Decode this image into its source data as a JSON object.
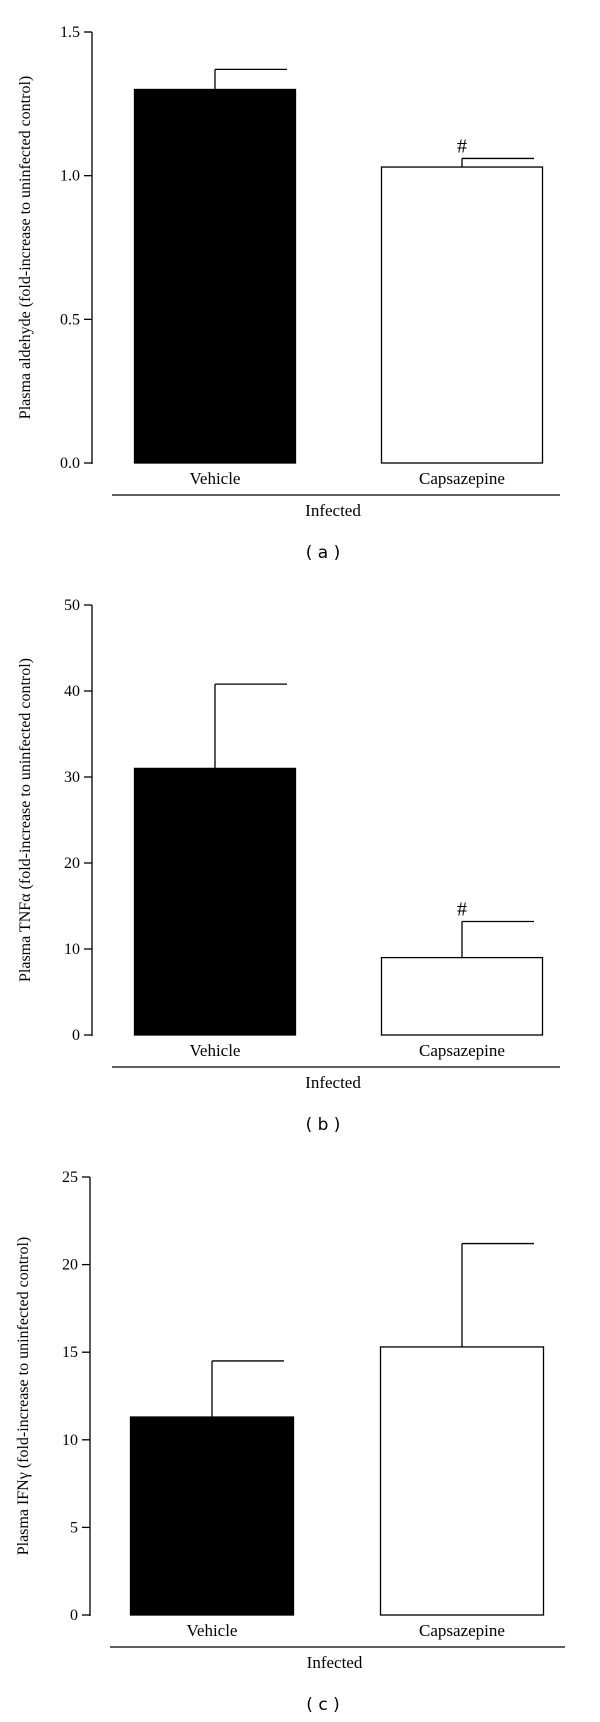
{
  "chart_data": [
    {
      "type": "bar",
      "panel": "( a )",
      "ylabel": "Plasma aldehyde (fold-increase to uninfected control)",
      "categories": [
        "Vehicle",
        "Capsazepine"
      ],
      "group_label": "Infected",
      "values": [
        1.3,
        1.03
      ],
      "errors": [
        0.07,
        0.03
      ],
      "significance": [
        "",
        "#"
      ],
      "bar_colors": [
        "#000000",
        "#ffffff"
      ],
      "ylim": [
        0,
        1.5
      ],
      "yticks": [
        0.0,
        0.5,
        1.0,
        1.5
      ],
      "ytick_labels": [
        "0.0",
        "0.5",
        "1.0",
        "1.5"
      ]
    },
    {
      "type": "bar",
      "panel": "( b )",
      "ylabel": "Plasma TNFα (fold-increase to uninfected control)",
      "categories": [
        "Vehicle",
        "Capsazepine"
      ],
      "group_label": "Infected",
      "values": [
        31,
        9
      ],
      "errors": [
        9.8,
        4.2
      ],
      "significance": [
        "",
        "#"
      ],
      "bar_colors": [
        "#000000",
        "#ffffff"
      ],
      "ylim": [
        0,
        50
      ],
      "yticks": [
        0,
        10,
        20,
        30,
        40,
        50
      ],
      "ytick_labels": [
        "0",
        "10",
        "20",
        "30",
        "40",
        "50"
      ]
    },
    {
      "type": "bar",
      "panel": "( c )",
      "ylabel": "Plasma IFNγ (fold-increase to uninfected control)",
      "categories": [
        "Vehicle",
        "Capsazepine"
      ],
      "group_label": "Infected",
      "values": [
        11.3,
        15.3
      ],
      "errors": [
        3.2,
        5.9
      ],
      "significance": [
        "",
        ""
      ],
      "bar_colors": [
        "#000000",
        "#ffffff"
      ],
      "ylim": [
        0,
        25
      ],
      "yticks": [
        0,
        5,
        10,
        15,
        20,
        25
      ],
      "ytick_labels": [
        "0",
        "5",
        "10",
        "15",
        "20",
        "25"
      ]
    }
  ]
}
